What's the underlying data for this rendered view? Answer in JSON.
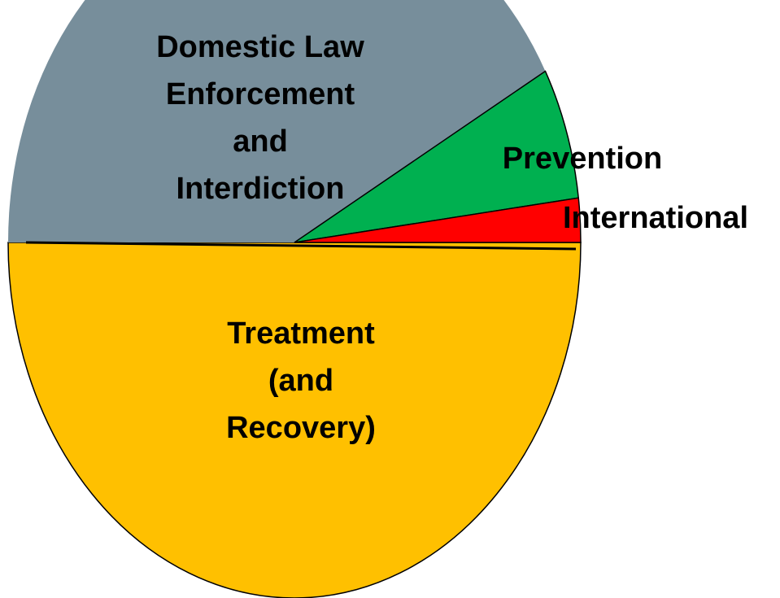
{
  "chart_data": {
    "type": "pie",
    "categories": [
      "Treatment (and Recovery)",
      "Domestic Law Enforcement and Interdiction",
      "Prevention",
      "International"
    ],
    "values": [
      50,
      42,
      6,
      2
    ],
    "colors": [
      "#ffc000",
      "#778e9b",
      "#00b050",
      "#ff0000"
    ]
  }
}
